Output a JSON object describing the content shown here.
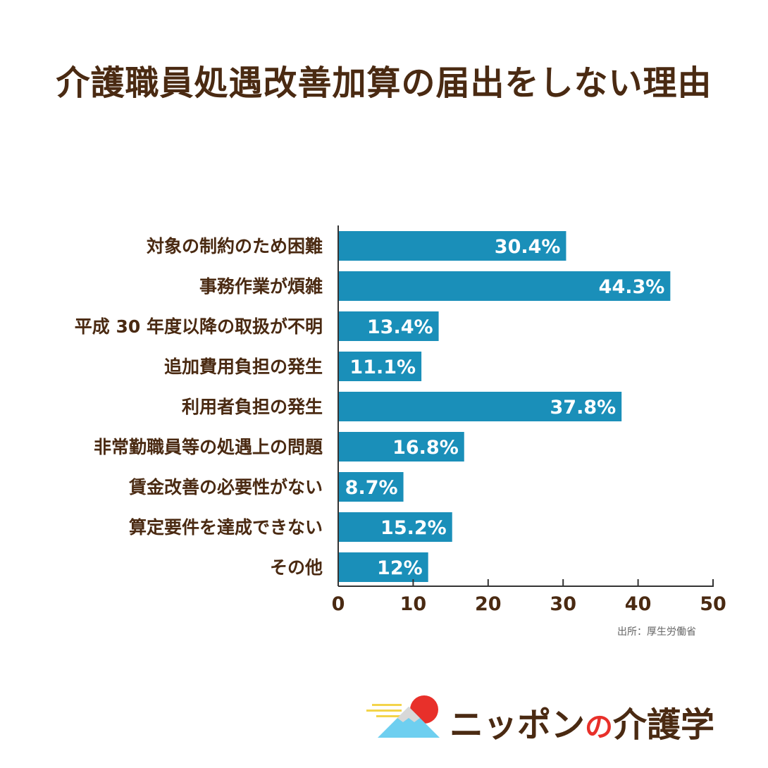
{
  "title": "介護職員処遇改善加算の届出をしない理由",
  "source": "出所：厚生労働省",
  "logo": {
    "part1": "ニッポン",
    "part2": "の",
    "part3": "介護学"
  },
  "colors": {
    "bar": "#1a8fb9",
    "label": "#4a2a12",
    "axis": "#333333",
    "bar_text": "#ffffff"
  },
  "chart_data": {
    "type": "bar",
    "orientation": "horizontal",
    "categories": [
      "対象の制約のため困難",
      "事務作業が煩雑",
      "平成 30 年度以降の取扱が不明",
      "追加費用負担の発生",
      "利用者負担の発生",
      "非常勤職員等の処遇上の問題",
      "賃金改善の必要性がない",
      "算定要件を達成できない",
      "その他"
    ],
    "values": [
      30.4,
      44.3,
      13.4,
      11.1,
      37.8,
      16.8,
      8.7,
      15.2,
      12
    ],
    "value_labels": [
      "30.4%",
      "44.3%",
      "13.4%",
      "11.1%",
      "37.8%",
      "16.8%",
      "8.7%",
      "15.2%",
      "12%"
    ],
    "xlim": [
      0,
      50
    ],
    "xticks": [
      0,
      10,
      20,
      30,
      40,
      50
    ],
    "xlabel": "",
    "ylabel": "",
    "grid": false,
    "legend": "none"
  }
}
